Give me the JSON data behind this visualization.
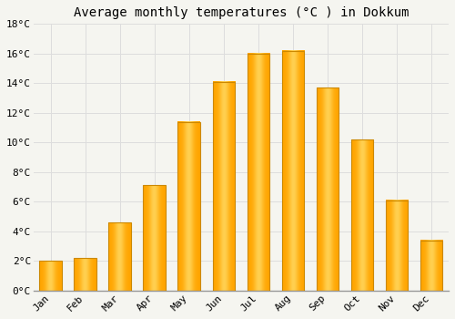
{
  "title": "Average monthly temperatures (°C ) in Dokkum",
  "months": [
    "Jan",
    "Feb",
    "Mar",
    "Apr",
    "May",
    "Jun",
    "Jul",
    "Aug",
    "Sep",
    "Oct",
    "Nov",
    "Dec"
  ],
  "temperatures": [
    2.0,
    2.2,
    4.6,
    7.1,
    11.4,
    14.1,
    16.0,
    16.2,
    13.7,
    10.2,
    6.1,
    3.4
  ],
  "bar_color_left": "#FFA500",
  "bar_color_center": "#FFD050",
  "bar_color_right": "#FFA500",
  "bar_edge_color": "#CC8800",
  "background_color": "#F5F5F0",
  "grid_color": "#DDDDDD",
  "ylim": [
    0,
    18
  ],
  "yticks": [
    0,
    2,
    4,
    6,
    8,
    10,
    12,
    14,
    16,
    18
  ],
  "ytick_labels": [
    "0°C",
    "2°C",
    "4°C",
    "6°C",
    "8°C",
    "10°C",
    "12°C",
    "14°C",
    "16°C",
    "18°C"
  ],
  "title_fontsize": 10,
  "tick_fontsize": 8,
  "font_family": "monospace",
  "bar_width": 0.65
}
